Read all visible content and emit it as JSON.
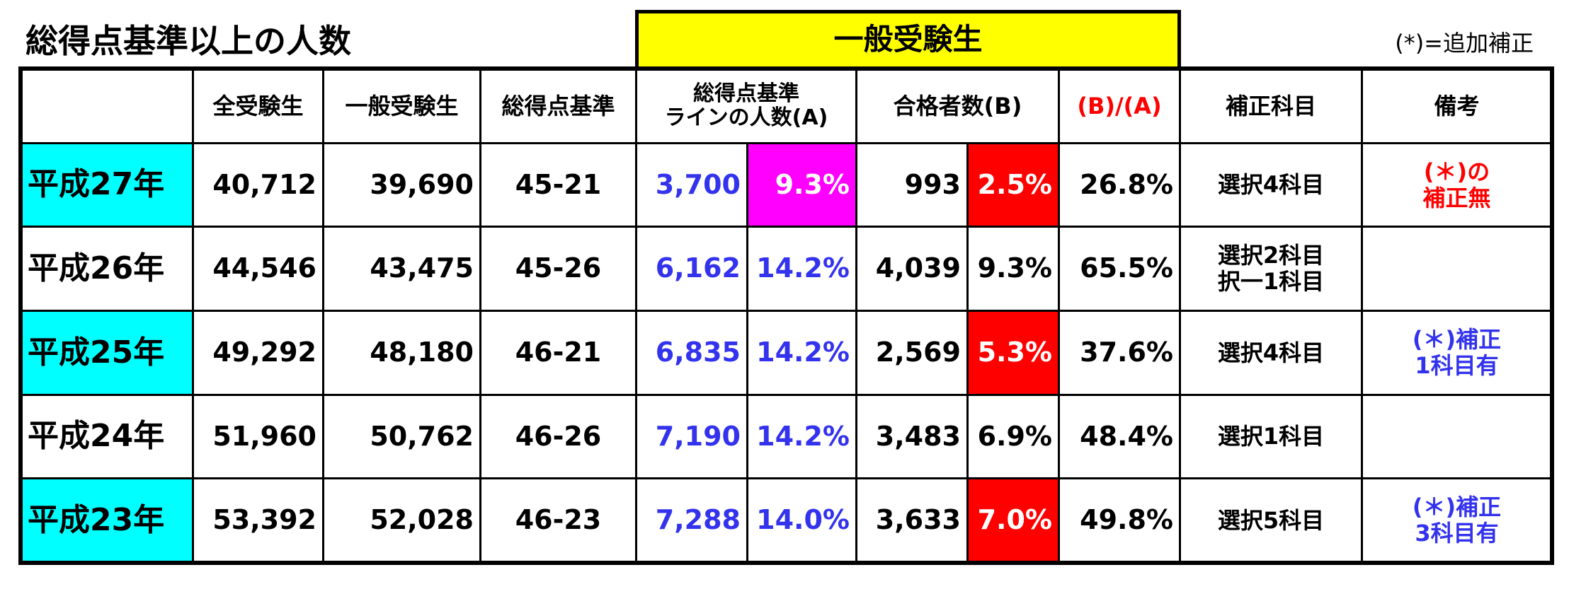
{
  "title": "総得点基準以上の人数",
  "group_header": "一般受験生",
  "group_color": "#ffff00",
  "note": "(*)=追加補正",
  "table": {
    "headers": {
      "all": "全受験生",
      "general": "一般受験生",
      "standard": "総得点基準",
      "a_count": [
        "総得点基準",
        "ラインの人数(A)"
      ],
      "b_count": "合格者数(B)",
      "ratio": "(B)/(A)",
      "subject": "補正科目",
      "remark": "備考"
    },
    "ratio_header_color": "#ff0000",
    "rows": [
      {
        "year": "平成27年",
        "year_bg": "#00ffff",
        "all": "40,712",
        "general": "39,690",
        "standard": "45-21",
        "a_count": "3,700",
        "a_pct": "9.3%",
        "a_pct_bg": "#ff00ff",
        "b_count": "993",
        "b_pct": "2.5%",
        "b_pct_bg": "#ff0000",
        "ratio": "26.8%",
        "subject": [
          "選択4科目"
        ],
        "remark": [
          "(＊)の",
          "補正無"
        ],
        "remark_color": "#ff0000"
      },
      {
        "year": "平成26年",
        "all": "44,546",
        "general": "43,475",
        "standard": "45-26",
        "a_count": "6,162",
        "a_pct": "14.2%",
        "b_count": "4,039",
        "b_pct": "9.3%",
        "ratio": "65.5%",
        "subject": [
          "選択2科目",
          "択一1科目"
        ]
      },
      {
        "year": "平成25年",
        "year_bg": "#00ffff",
        "all": "49,292",
        "general": "48,180",
        "standard": "46-21",
        "a_count": "6,835",
        "a_pct": "14.2%",
        "b_count": "2,569",
        "b_pct": "5.3%",
        "b_pct_bg": "#ff0000",
        "ratio": "37.6%",
        "subject": [
          "選択4科目"
        ],
        "remark": [
          "(＊)補正",
          "1科目有"
        ],
        "remark_color": "#3333ee"
      },
      {
        "year": "平成24年",
        "all": "51,960",
        "general": "50,762",
        "standard": "46-26",
        "a_count": "7,190",
        "a_pct": "14.2%",
        "b_count": "3,483",
        "b_pct": "6.9%",
        "ratio": "48.4%",
        "subject": [
          "選択1科目"
        ]
      },
      {
        "year": "平成23年",
        "year_bg": "#00ffff",
        "all": "53,392",
        "general": "52,028",
        "standard": "46-23",
        "a_count": "7,288",
        "a_pct": "14.0%",
        "b_count": "3,633",
        "b_pct": "7.0%",
        "b_pct_bg": "#ff0000",
        "ratio": "49.8%",
        "subject": [
          "選択5科目"
        ],
        "remark": [
          "(＊)補正",
          "3科目有"
        ],
        "remark_color": "#3333ee"
      }
    ],
    "a_color": "#3333ee"
  }
}
